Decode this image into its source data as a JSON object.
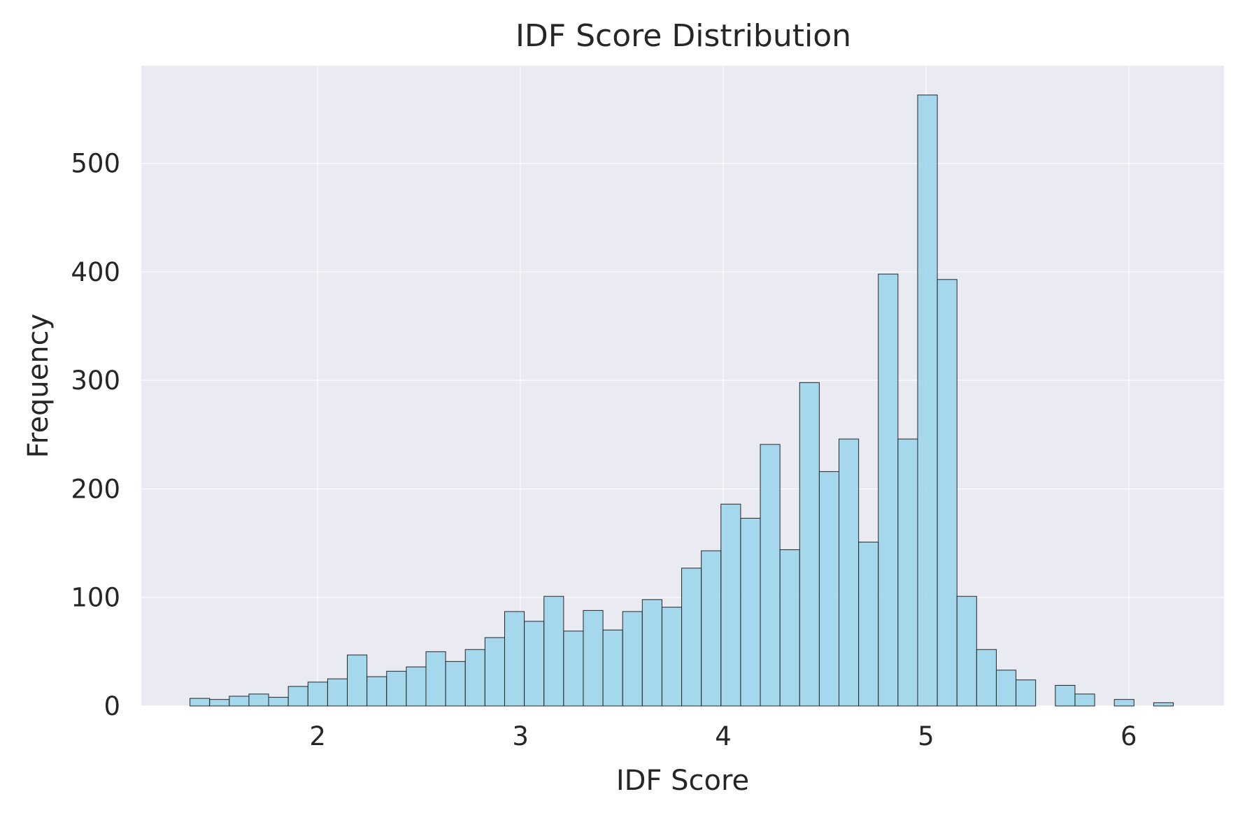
{
  "chart_data": {
    "type": "bar",
    "title": "IDF Score Distribution",
    "xlabel": "IDF Score",
    "ylabel": "Frequency",
    "xlim": [
      1.13,
      6.47
    ],
    "ylim": [
      0,
      590
    ],
    "xticks": [
      2,
      3,
      4,
      5,
      6
    ],
    "yticks": [
      0,
      100,
      200,
      300,
      400,
      500
    ],
    "grid": true,
    "colors": {
      "background": "#eaeaf2",
      "bar_fill": "#87ceeb",
      "bar_edge": "#262626",
      "grid": "#ffffff"
    },
    "bins": {
      "start": 1.37,
      "width": 0.097,
      "counts": [
        7,
        6,
        9,
        11,
        8,
        18,
        22,
        25,
        47,
        27,
        32,
        36,
        50,
        41,
        52,
        63,
        87,
        78,
        101,
        69,
        88,
        70,
        87,
        98,
        91,
        127,
        143,
        186,
        173,
        241,
        144,
        298,
        216,
        246,
        151,
        398,
        246,
        563,
        393,
        101,
        52,
        33,
        24,
        0,
        19,
        11,
        0,
        6,
        0,
        3
      ]
    }
  }
}
